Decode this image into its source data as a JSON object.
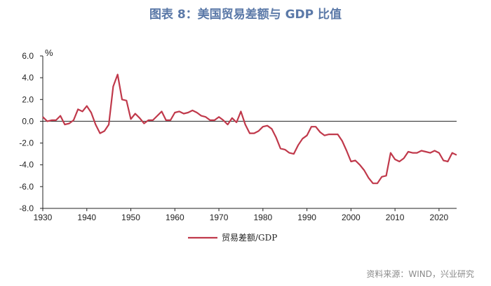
{
  "title": "图表 8：美国贸易差额与 GDP 比值",
  "source": "资料来源：WIND，兴业研究",
  "chart_data": {
    "type": "line",
    "unit_label": "%",
    "xlim": [
      1930,
      2024
    ],
    "ylim": [
      -8,
      6
    ],
    "x_ticks": [
      1930,
      1940,
      1950,
      1960,
      1970,
      1980,
      1990,
      2000,
      2010,
      2020
    ],
    "y_ticks": [
      6,
      4,
      2,
      0,
      -2,
      -4,
      -6,
      -8
    ],
    "y_tick_labels": [
      "6.0",
      "4.0",
      "2.0",
      "0.0",
      "-2.0",
      "-4.0",
      "-6.0",
      "-8.0"
    ],
    "legend_position": "bottom-center",
    "line_color": "#c0394b",
    "series": [
      {
        "name": "贸易差额/GDP",
        "x": [
          1930,
          1931,
          1932,
          1933,
          1934,
          1935,
          1936,
          1937,
          1938,
          1939,
          1940,
          1941,
          1942,
          1943,
          1944,
          1945,
          1946,
          1947,
          1948,
          1949,
          1950,
          1951,
          1952,
          1953,
          1954,
          1955,
          1956,
          1957,
          1958,
          1959,
          1960,
          1961,
          1962,
          1963,
          1964,
          1965,
          1966,
          1967,
          1968,
          1969,
          1970,
          1971,
          1972,
          1973,
          1974,
          1975,
          1976,
          1977,
          1978,
          1979,
          1980,
          1981,
          1982,
          1983,
          1984,
          1985,
          1986,
          1987,
          1988,
          1989,
          1990,
          1991,
          1992,
          1993,
          1994,
          1995,
          1996,
          1997,
          1998,
          1999,
          2000,
          2001,
          2002,
          2003,
          2004,
          2005,
          2006,
          2007,
          2008,
          2009,
          2010,
          2011,
          2012,
          2013,
          2014,
          2015,
          2016,
          2017,
          2018,
          2019,
          2020,
          2021,
          2022,
          2023,
          2024
        ],
        "values": [
          0.4,
          0.0,
          0.1,
          0.1,
          0.5,
          -0.3,
          -0.2,
          0.1,
          1.1,
          0.9,
          1.4,
          0.8,
          -0.3,
          -1.1,
          -0.9,
          -0.3,
          3.2,
          4.3,
          2.0,
          1.9,
          0.2,
          0.7,
          0.3,
          -0.2,
          0.1,
          0.1,
          0.5,
          0.9,
          0.1,
          0.1,
          0.8,
          0.9,
          0.7,
          0.8,
          1.0,
          0.8,
          0.5,
          0.4,
          0.1,
          0.1,
          0.4,
          0.1,
          -0.3,
          0.3,
          -0.1,
          0.9,
          -0.3,
          -1.1,
          -1.1,
          -0.9,
          -0.5,
          -0.4,
          -0.7,
          -1.5,
          -2.5,
          -2.6,
          -2.9,
          -3.0,
          -2.2,
          -1.6,
          -1.3,
          -0.5,
          -0.5,
          -1.0,
          -1.3,
          -1.2,
          -1.2,
          -1.2,
          -1.8,
          -2.7,
          -3.7,
          -3.6,
          -4.0,
          -4.5,
          -5.2,
          -5.7,
          -5.7,
          -5.1,
          -5.0,
          -2.9,
          -3.5,
          -3.7,
          -3.4,
          -2.8,
          -2.9,
          -2.9,
          -2.7,
          -2.8,
          -2.9,
          -2.7,
          -2.9,
          -3.6,
          -3.7,
          -2.9,
          -3.1
        ]
      }
    ]
  }
}
